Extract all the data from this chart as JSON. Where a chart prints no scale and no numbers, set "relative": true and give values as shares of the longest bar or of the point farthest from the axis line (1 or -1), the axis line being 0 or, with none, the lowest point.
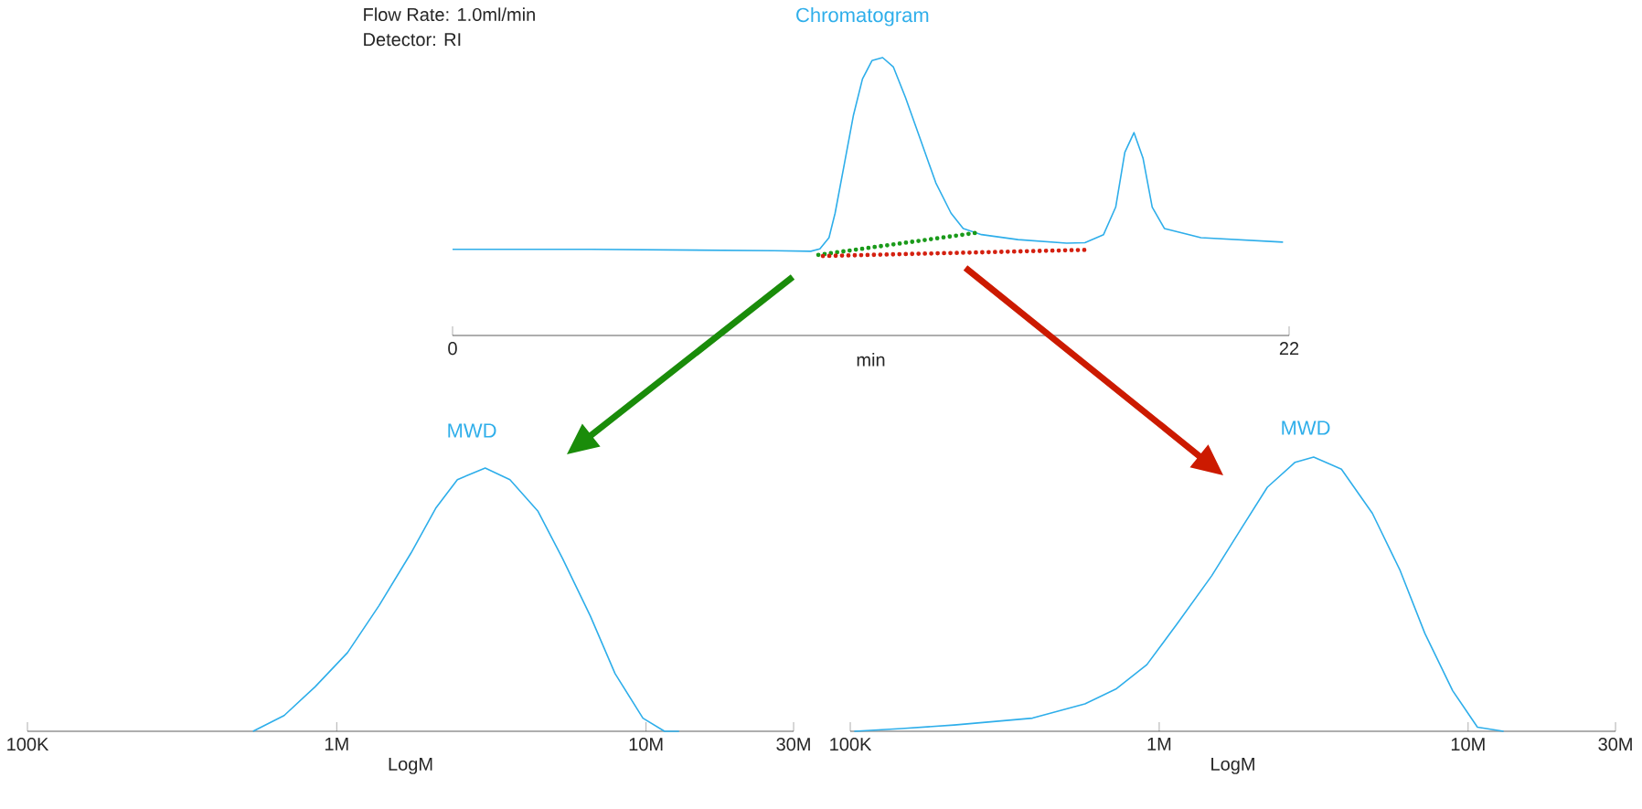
{
  "chart_data": [
    {
      "type": "line",
      "title": "Chromatogram",
      "xlabel": "min",
      "relative": true,
      "xlim": [
        0,
        22
      ],
      "xticks": [
        0,
        22
      ],
      "annotations": [
        "Flow Rate:       1.0ml/min",
        "Detector:         RI"
      ],
      "series": [
        {
          "color": "#2eaeea",
          "x": [
            0,
            3.65,
            8.46,
            9.42,
            9.66,
            9.9,
            10.06,
            10.3,
            10.54,
            10.78,
            11.03,
            11.31,
            11.59,
            11.91,
            12.31,
            12.71,
            13.11,
            13.43,
            13.91,
            14.87,
            16.15,
            16.63,
            17.12,
            17.44,
            17.68,
            17.92,
            18.16,
            18.4,
            18.72,
            19.68,
            21.84
          ],
          "values": [
            0.31,
            0.31,
            0.305,
            0.303,
            0.312,
            0.352,
            0.44,
            0.615,
            0.791,
            0.923,
            0.989,
            1.0,
            0.967,
            0.857,
            0.703,
            0.549,
            0.44,
            0.385,
            0.363,
            0.345,
            0.332,
            0.334,
            0.363,
            0.462,
            0.659,
            0.73,
            0.637,
            0.462,
            0.385,
            0.352,
            0.336
          ]
        },
        {
          "color": "#1a9a1a",
          "line_style": "dotted",
          "x": [
            9.62,
            13.75
          ],
          "values": [
            0.29,
            0.369
          ]
        },
        {
          "color": "#d42010",
          "line_style": "dotted",
          "x": [
            9.74,
            16.63
          ],
          "values": [
            0.286,
            0.308
          ]
        }
      ]
    },
    {
      "type": "line",
      "title": "MWD",
      "xlabel": "LogM",
      "relative": true,
      "log": "x",
      "xlim": [
        100000,
        30000000
      ],
      "xticks": [
        {
          "value": 100000,
          "label": "100K"
        },
        {
          "value": 1000000,
          "label": "1M"
        },
        {
          "value": 10000000,
          "label": "10M"
        },
        {
          "value": 30000000,
          "label": "30M"
        }
      ],
      "series": [
        {
          "color": "#2eaeea",
          "x": [
            536000,
            676000,
            851000,
            1084000,
            1371000,
            1738000,
            2089000,
            2455000,
            3020000,
            3631000,
            4467000,
            5370000,
            6607000,
            7943000,
            9772000,
            11480000,
            12790000
          ],
          "values": [
            0,
            0.06,
            0.169,
            0.299,
            0.478,
            0.677,
            0.847,
            0.956,
            1.0,
            0.956,
            0.837,
            0.657,
            0.438,
            0.219,
            0.05,
            0,
            0
          ]
        }
      ]
    },
    {
      "type": "line",
      "title": "MWD",
      "xlabel": "LogM",
      "relative": true,
      "log": "x",
      "xlim": [
        100000,
        30000000
      ],
      "xticks": [
        {
          "value": 100000,
          "label": "100K"
        },
        {
          "value": 1000000,
          "label": "1M"
        },
        {
          "value": 10000000,
          "label": "10M"
        },
        {
          "value": 30000000,
          "label": "30M"
        }
      ],
      "series": [
        {
          "color": "#2eaeea",
          "x": [
            103000,
            146600,
            216800,
            389000,
            575000,
            724000,
            912000,
            1148000,
            1479000,
            1862000,
            2239000,
            2754000,
            3162000,
            3890000,
            4898000,
            6026000,
            7244000,
            8913000,
            10720000,
            13030000
          ],
          "values": [
            0,
            0.01,
            0.023,
            0.048,
            0.1,
            0.154,
            0.243,
            0.395,
            0.567,
            0.747,
            0.89,
            0.981,
            1.0,
            0.956,
            0.795,
            0.586,
            0.357,
            0.148,
            0.015,
            0
          ]
        }
      ]
    }
  ]
}
